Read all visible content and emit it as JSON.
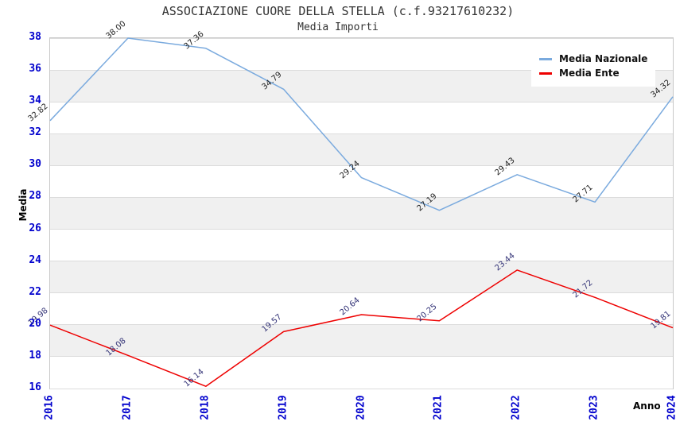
{
  "header": {
    "title": "ASSOCIAZIONE CUORE DELLA STELLA (c.f.93217610232)",
    "subtitle": "Media Importi"
  },
  "chart_data": {
    "type": "line",
    "title": "ASSOCIAZIONE CUORE DELLA STELLA (c.f.93217610232)",
    "subtitle": "Media Importi",
    "xlabel": "Anno",
    "ylabel": "Media",
    "ylim": [
      16,
      38
    ],
    "y_ticks": [
      38,
      36,
      34,
      32,
      30,
      28,
      26,
      24,
      22,
      20,
      18,
      16
    ],
    "grid": "horizontal-gridlines-with-alternating-bands",
    "legend_position": "top-right",
    "categories": [
      "2016",
      "2017",
      "2018",
      "2019",
      "2020",
      "2021",
      "2022",
      "2023",
      "2024"
    ],
    "series": [
      {
        "name": "Media Nazionale",
        "color": "#7aaade",
        "label_color": "#222222",
        "values": [
          32.82,
          38.0,
          37.36,
          34.79,
          29.24,
          27.19,
          29.43,
          27.71,
          34.32
        ]
      },
      {
        "name": "Media Ente",
        "color": "#ee0000",
        "label_color": "#333377",
        "values": [
          19.98,
          18.08,
          16.14,
          19.57,
          20.64,
          20.25,
          23.44,
          21.72,
          19.81
        ]
      }
    ],
    "styles": {
      "tick_color": "#0000cd",
      "band_color": "#f0f0f0",
      "grid_color": "#dcdcdc",
      "border_color": "#c8c8c8",
      "title_color": "#333333",
      "background": "#ffffff"
    }
  }
}
